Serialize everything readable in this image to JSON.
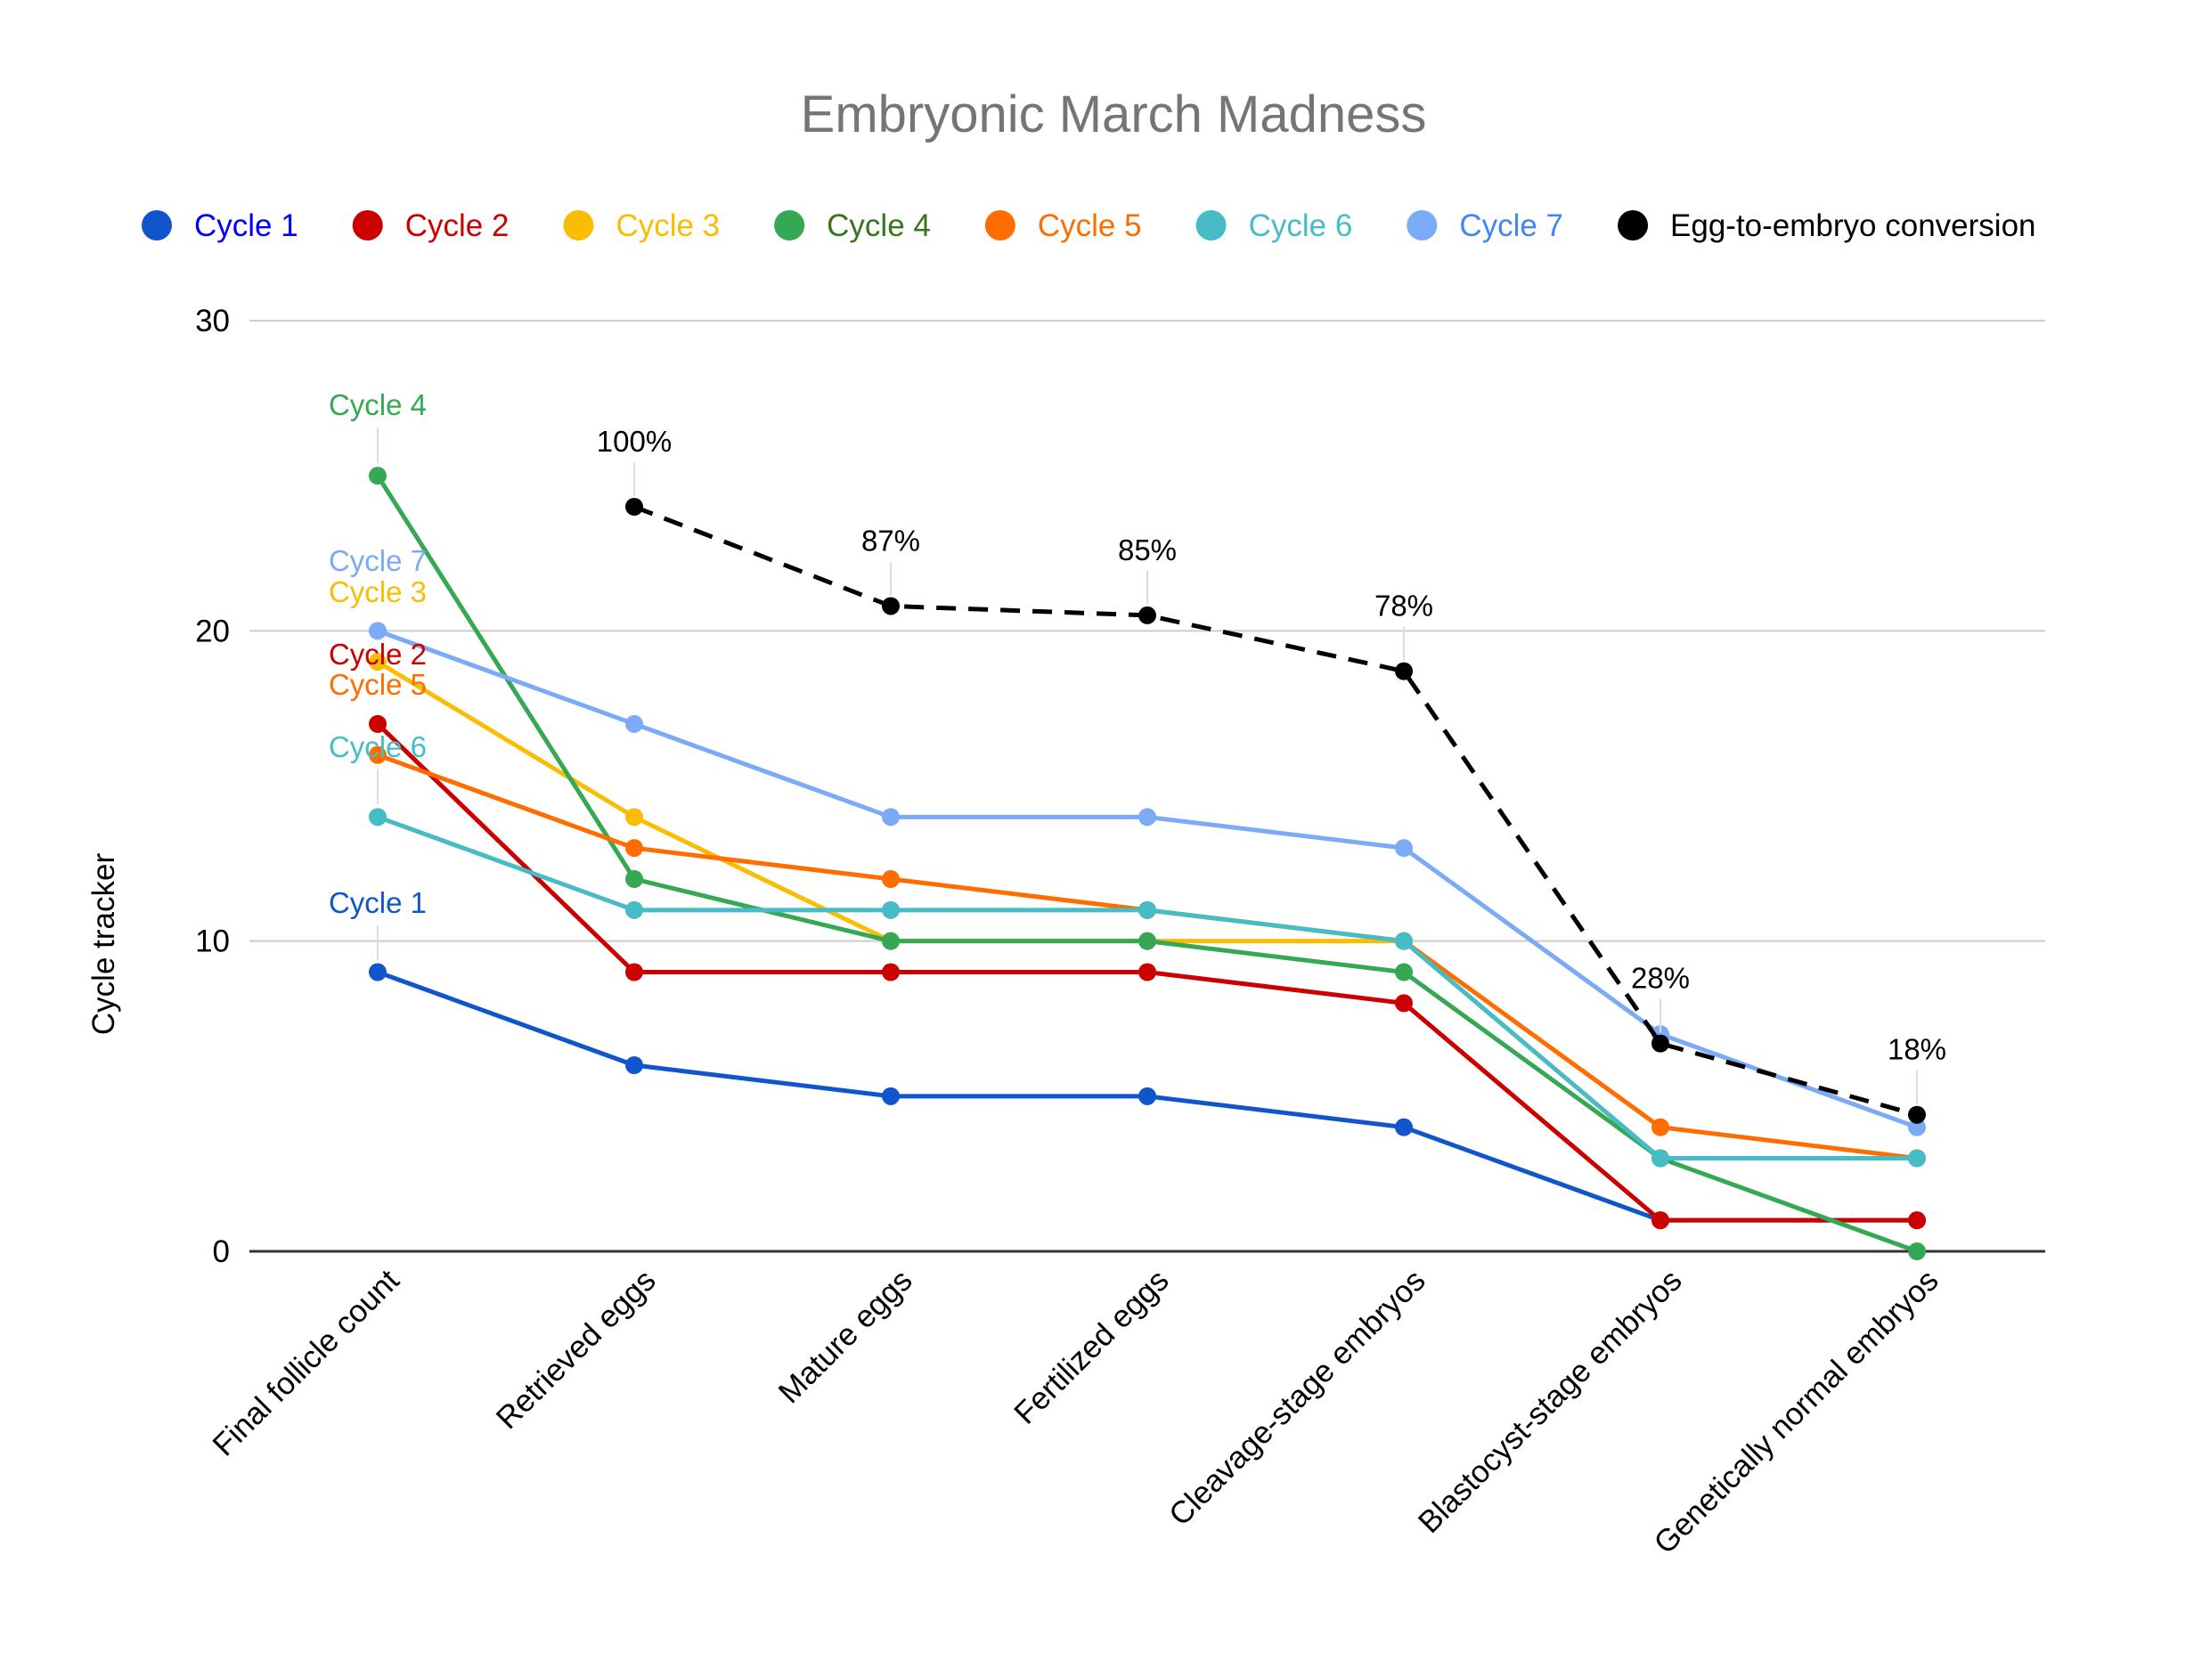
{
  "chart_data": {
    "type": "line",
    "title": "Embryonic March Madness",
    "xlabel": "",
    "ylabel": "Cycle tracker",
    "ylim": [
      0,
      30
    ],
    "yticks": [
      0,
      10,
      20,
      30
    ],
    "gridlines": true,
    "legend_position": "top",
    "categories": [
      "Final follicle count",
      "Retrieved eggs",
      "Mature eggs",
      "Fertilized eggs",
      "Cleavage-stage embryos",
      "Blastocyst-stage embryos",
      "Genetically normal embryos"
    ],
    "series": [
      {
        "name": "Cycle 1",
        "color": "#1155cc",
        "legend_text_color": "#0000ff",
        "values": [
          9,
          6,
          5,
          5,
          4,
          1,
          1
        ]
      },
      {
        "name": "Cycle 2",
        "color": "#cc0000",
        "legend_text_color": "#cc0000",
        "values": [
          17,
          9,
          9,
          9,
          8,
          1,
          1
        ]
      },
      {
        "name": "Cycle 3",
        "color": "#fbbc04",
        "legend_text_color": "#fbbc04",
        "values": [
          19,
          14,
          10,
          10,
          10,
          3,
          3
        ]
      },
      {
        "name": "Cycle 4",
        "color": "#34a853",
        "legend_text_color": "#38761d",
        "values": [
          25,
          12,
          10,
          10,
          9,
          3,
          0
        ]
      },
      {
        "name": "Cycle 5",
        "color": "#ff6d01",
        "legend_text_color": "#ff6d01",
        "values": [
          16,
          13,
          12,
          11,
          10,
          4,
          3
        ]
      },
      {
        "name": "Cycle 6",
        "color": "#46bdc6",
        "legend_text_color": "#46bdc6",
        "values": [
          14,
          11,
          11,
          11,
          10,
          3,
          3
        ]
      },
      {
        "name": "Cycle 7",
        "color": "#7baaf7",
        "legend_text_color": "#4285f4",
        "values": [
          20,
          17,
          14,
          14,
          13,
          7,
          4
        ]
      },
      {
        "name": "Egg-to-embryo conversion",
        "color": "#000000",
        "legend_text_color": "#000000",
        "dashed": true,
        "values": [
          null,
          24,
          20.8,
          20.5,
          18.7,
          6.7,
          4.4
        ],
        "data_labels": [
          null,
          "100%",
          "87%",
          "85%",
          "78%",
          "28%",
          "18%"
        ]
      }
    ],
    "series_labels_at_first_point": [
      {
        "name": "Cycle 4",
        "color": "#34a853"
      },
      {
        "name": "Cycle 7",
        "color": "#7baaf7"
      },
      {
        "name": "Cycle 3",
        "color": "#fbbc04"
      },
      {
        "name": "Cycle 2",
        "color": "#cc0000"
      },
      {
        "name": "Cycle 5",
        "color": "#ff6d01"
      },
      {
        "name": "Cycle 6",
        "color": "#46bdc6"
      },
      {
        "name": "Cycle 1",
        "color": "#1155cc"
      }
    ]
  }
}
